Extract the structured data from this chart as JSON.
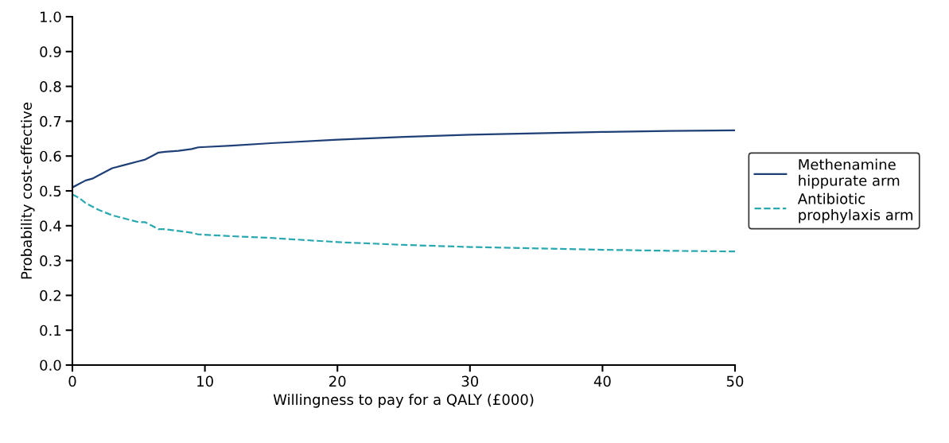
{
  "chart_data": {
    "type": "line",
    "xlabel": "Willingness to pay for a QALY (£000)",
    "ylabel": "Probability cost-effective",
    "x": [
      0,
      0.5,
      1,
      1.5,
      2,
      3,
      4,
      5,
      5.5,
      6,
      6.5,
      7,
      8,
      9,
      9.5,
      12,
      15,
      20,
      25,
      30,
      35,
      40,
      45,
      50
    ],
    "series": [
      {
        "name": "Methenamine hippurate arm",
        "color": "#1f3f77",
        "line_style": "solid",
        "values": [
          0.51,
          0.52,
          0.53,
          0.535,
          0.545,
          0.565,
          0.575,
          0.585,
          0.59,
          0.6,
          0.61,
          0.612,
          0.615,
          0.62,
          0.625,
          0.63,
          0.637,
          0.647,
          0.655,
          0.661,
          0.665,
          0.669,
          0.672,
          0.674
        ]
      },
      {
        "name": "Antibiotic prophylaxis arm",
        "color": "#2aa8b0",
        "line_style": "dashed",
        "values": [
          0.49,
          0.48,
          0.465,
          0.455,
          0.445,
          0.43,
          0.42,
          0.41,
          0.41,
          0.4,
          0.39,
          0.39,
          0.385,
          0.38,
          0.375,
          0.37,
          0.365,
          0.353,
          0.345,
          0.339,
          0.335,
          0.331,
          0.328,
          0.326
        ]
      }
    ],
    "xlim": [
      0,
      50
    ],
    "xticks": [
      0,
      10,
      20,
      30,
      40,
      50
    ],
    "ylim": [
      0,
      1
    ],
    "yticks": [
      {
        "value": 0,
        "label": "0.0"
      },
      {
        "value": 0.1,
        "label": "0.1"
      },
      {
        "value": 0.2,
        "label": "0.2"
      },
      {
        "value": 0.3,
        "label": "0.3"
      },
      {
        "value": 0.4,
        "label": "0.4"
      },
      {
        "value": 0.5,
        "label": "0.5"
      },
      {
        "value": 0.6,
        "label": "0.6"
      },
      {
        "value": 0.7,
        "label": "0.7"
      },
      {
        "value": 0.8,
        "label": "0.8"
      },
      {
        "value": 0.9,
        "label": "0.9"
      },
      {
        "value": 1,
        "label": "1.0"
      }
    ],
    "grid": false,
    "legend": "right"
  }
}
